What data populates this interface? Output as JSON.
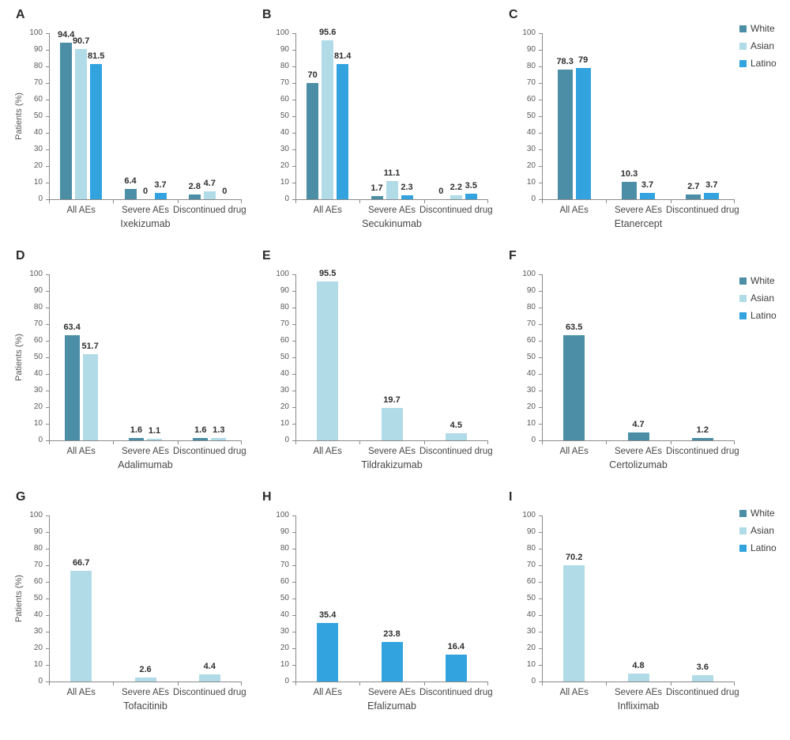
{
  "chart_data": {
    "type": "bar",
    "ylabel": "Patients (%)",
    "ylim": [
      0,
      100
    ],
    "ytick_step": 10,
    "grid": false,
    "legend_position": "right",
    "categories": [
      "All AEs",
      "Severe AEs",
      "Discontinued drug"
    ],
    "legend": [
      {
        "label": "White",
        "color": "#4B8EA6"
      },
      {
        "label": "Asian",
        "color": "#B0DBE7"
      },
      {
        "label": "Latino",
        "color": "#33A3E0"
      }
    ],
    "panels": [
      {
        "letter": "A",
        "drug": "Ixekizumab",
        "series": [
          {
            "name": "White",
            "values": [
              94.4,
              6.4,
              2.8
            ]
          },
          {
            "name": "Asian",
            "values": [
              90.7,
              0,
              4.7
            ]
          },
          {
            "name": "Latino",
            "values": [
              81.5,
              3.7,
              0
            ]
          }
        ]
      },
      {
        "letter": "B",
        "drug": "Secukinumab",
        "series": [
          {
            "name": "White",
            "values": [
              70,
              1.7,
              0
            ]
          },
          {
            "name": "Asian",
            "values": [
              95.6,
              11.1,
              2.2
            ]
          },
          {
            "name": "Latino",
            "values": [
              81.4,
              2.3,
              3.5
            ]
          }
        ]
      },
      {
        "letter": "C",
        "drug": "Etanercept",
        "series": [
          {
            "name": "White",
            "values": [
              78.3,
              10.3,
              2.7
            ]
          },
          {
            "name": "Latino",
            "values": [
              79,
              3.7,
              3.7
            ]
          }
        ]
      },
      {
        "letter": "D",
        "drug": "Adalimumab",
        "series": [
          {
            "name": "White",
            "values": [
              63.4,
              1.6,
              1.6
            ]
          },
          {
            "name": "Asian",
            "values": [
              51.7,
              1.1,
              1.3
            ]
          }
        ]
      },
      {
        "letter": "E",
        "drug": "Tildrakizumab",
        "series": [
          {
            "name": "Asian",
            "values": [
              95.5,
              19.7,
              4.5
            ]
          }
        ]
      },
      {
        "letter": "F",
        "drug": "Certolizumab",
        "series": [
          {
            "name": "White",
            "values": [
              63.5,
              4.7,
              1.2
            ]
          }
        ]
      },
      {
        "letter": "G",
        "drug": "Tofacitinib",
        "series": [
          {
            "name": "Asian",
            "values": [
              66.7,
              2.6,
              4.4
            ]
          }
        ]
      },
      {
        "letter": "H",
        "drug": "Efalizumab",
        "series": [
          {
            "name": "Latino",
            "values": [
              35.4,
              23.8,
              16.4
            ]
          }
        ]
      },
      {
        "letter": "I",
        "drug": "Infliximab",
        "series": [
          {
            "name": "Asian",
            "values": [
              70.2,
              4.8,
              3.6
            ]
          }
        ]
      }
    ]
  }
}
